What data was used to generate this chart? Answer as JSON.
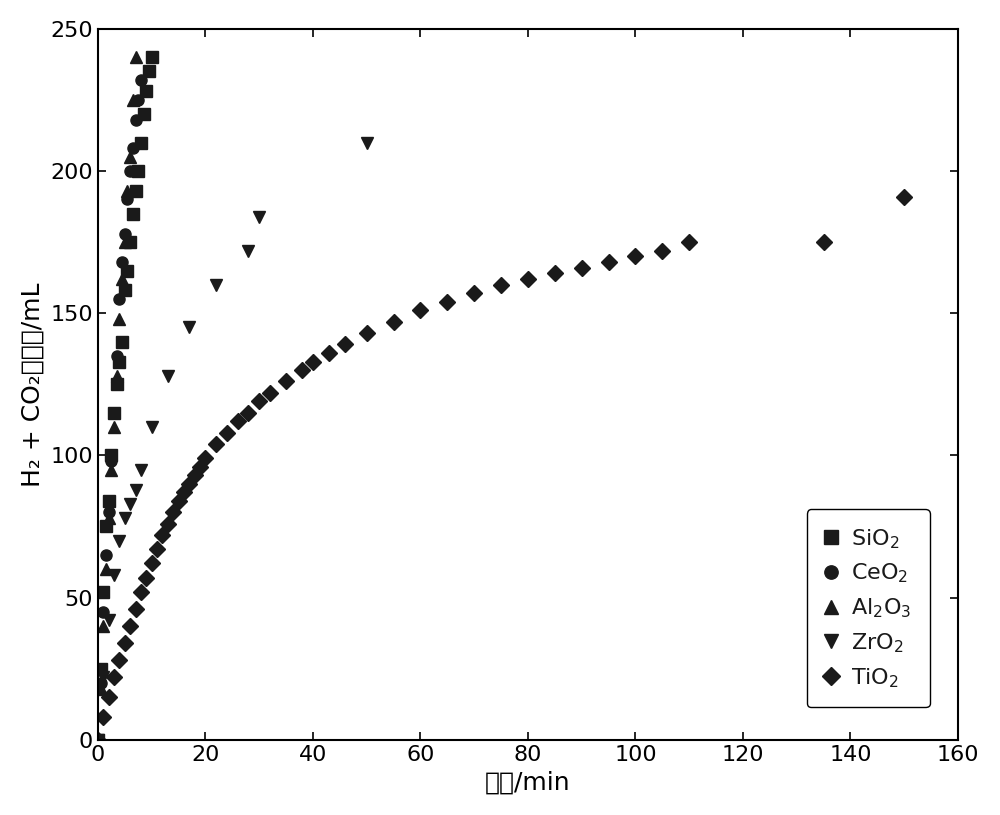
{
  "title": "",
  "xlabel": "时间/min",
  "ylabel": "H₂ + CO₂总体积/mL",
  "xlim": [
    0,
    160
  ],
  "ylim": [
    0,
    250
  ],
  "xticks": [
    0,
    20,
    40,
    60,
    80,
    100,
    120,
    140,
    160
  ],
  "yticks": [
    0,
    50,
    100,
    150,
    200,
    250
  ],
  "color": "#1a1a1a",
  "series": {
    "SiO2": {
      "x": [
        0,
        0.5,
        1,
        1.5,
        2,
        2.5,
        3,
        3.5,
        4,
        4.5,
        5,
        5.5,
        6,
        6.5,
        7,
        7.5,
        8,
        8.5,
        9,
        9.5,
        10
      ],
      "y": [
        0,
        25,
        52,
        75,
        84,
        100,
        115,
        125,
        133,
        140,
        158,
        165,
        175,
        185,
        193,
        200,
        210,
        220,
        228,
        235,
        240
      ],
      "marker": "s",
      "label": "SiO₂"
    },
    "CeO2": {
      "x": [
        0,
        0.5,
        1,
        1.5,
        2,
        2.5,
        3,
        3.5,
        4,
        4.5,
        5,
        5.5,
        6,
        6.5,
        7,
        7.5,
        8
      ],
      "y": [
        0,
        20,
        45,
        65,
        80,
        98,
        115,
        135,
        155,
        168,
        178,
        190,
        200,
        208,
        218,
        225,
        232
      ],
      "marker": "o",
      "label": "CeO₂"
    },
    "Al2O3": {
      "x": [
        0,
        0.5,
        1,
        1.5,
        2,
        2.5,
        3,
        3.5,
        4,
        4.5,
        5,
        5.5,
        6,
        6.5,
        7
      ],
      "y": [
        0,
        18,
        40,
        60,
        78,
        95,
        110,
        128,
        148,
        162,
        175,
        193,
        205,
        225,
        240
      ],
      "marker": "^",
      "label": "Al₂O₃"
    },
    "ZrO2": {
      "x": [
        0,
        1,
        2,
        3,
        4,
        5,
        6,
        7,
        8,
        10,
        13,
        17,
        22,
        28,
        30,
        50
      ],
      "y": [
        0,
        22,
        42,
        58,
        70,
        78,
        83,
        88,
        95,
        110,
        128,
        145,
        160,
        172,
        184,
        210
      ],
      "marker": "v",
      "label": "ZrO₂"
    },
    "TiO2": {
      "x": [
        0,
        1,
        2,
        3,
        4,
        5,
        6,
        7,
        8,
        9,
        10,
        11,
        12,
        13,
        14,
        15,
        16,
        17,
        18,
        19,
        20,
        22,
        24,
        26,
        28,
        30,
        32,
        35,
        38,
        40,
        43,
        46,
        50,
        55,
        60,
        65,
        70,
        75,
        80,
        85,
        90,
        95,
        100,
        105,
        110,
        135,
        150
      ],
      "y": [
        0,
        8,
        15,
        22,
        28,
        34,
        40,
        46,
        52,
        57,
        62,
        67,
        72,
        76,
        80,
        84,
        87,
        90,
        93,
        96,
        99,
        104,
        108,
        112,
        115,
        119,
        122,
        126,
        130,
        133,
        136,
        139,
        143,
        147,
        151,
        154,
        157,
        160,
        162,
        164,
        166,
        168,
        170,
        172,
        175,
        175,
        191
      ],
      "marker": "D",
      "label": "TiO₂"
    }
  },
  "legend_labels_normal": [
    "SiO",
    "CeO",
    "Al",
    "O",
    "ZrO",
    "TiO"
  ],
  "figsize": [
    10.0,
    8.15
  ],
  "dpi": 100
}
